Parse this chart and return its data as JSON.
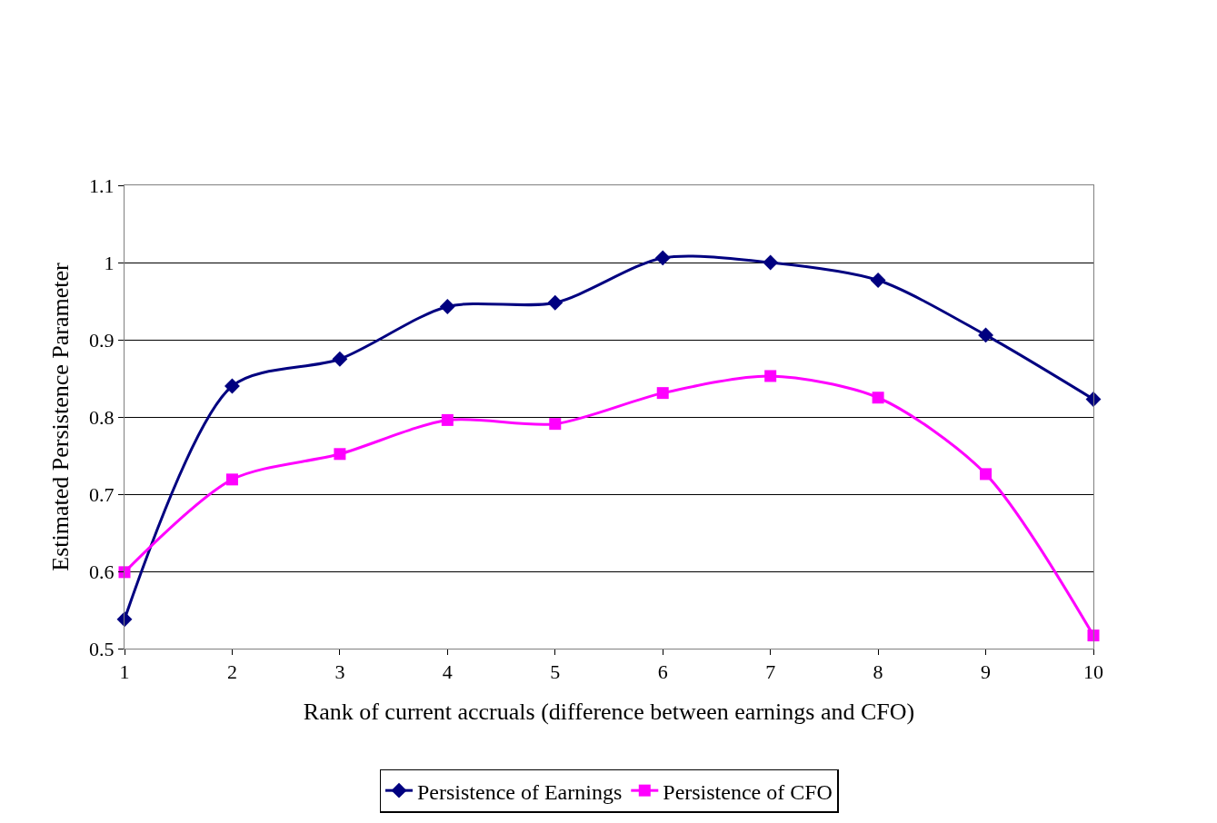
{
  "chart_data": {
    "type": "line",
    "xlabel": "Rank of current accruals (difference between earnings and CFO)",
    "ylabel": "Estimated Persistence Parameter",
    "x": [
      1,
      2,
      3,
      4,
      5,
      6,
      7,
      8,
      9,
      10
    ],
    "series": [
      {
        "name": "Persistence of Earnings",
        "color": "#000080",
        "marker": "diamond",
        "values": [
          0.538,
          0.84,
          0.875,
          0.943,
          0.948,
          1.006,
          1.0,
          0.977,
          0.906,
          0.823
        ]
      },
      {
        "name": "Persistence of CFO",
        "color": "#ff00ff",
        "marker": "square",
        "values": [
          0.599,
          0.719,
          0.752,
          0.796,
          0.791,
          0.831,
          0.853,
          0.825,
          0.726,
          0.517
        ]
      }
    ],
    "xlim": [
      1,
      10
    ],
    "xticks": [
      1,
      2,
      3,
      4,
      5,
      6,
      7,
      8,
      9,
      10
    ],
    "ylim": [
      0.5,
      1.1
    ],
    "yticks": [
      0.5,
      0.6,
      0.7,
      0.8,
      0.9,
      1,
      1.1
    ],
    "grid": "y",
    "legend": "bottom",
    "line_style": "solid"
  }
}
